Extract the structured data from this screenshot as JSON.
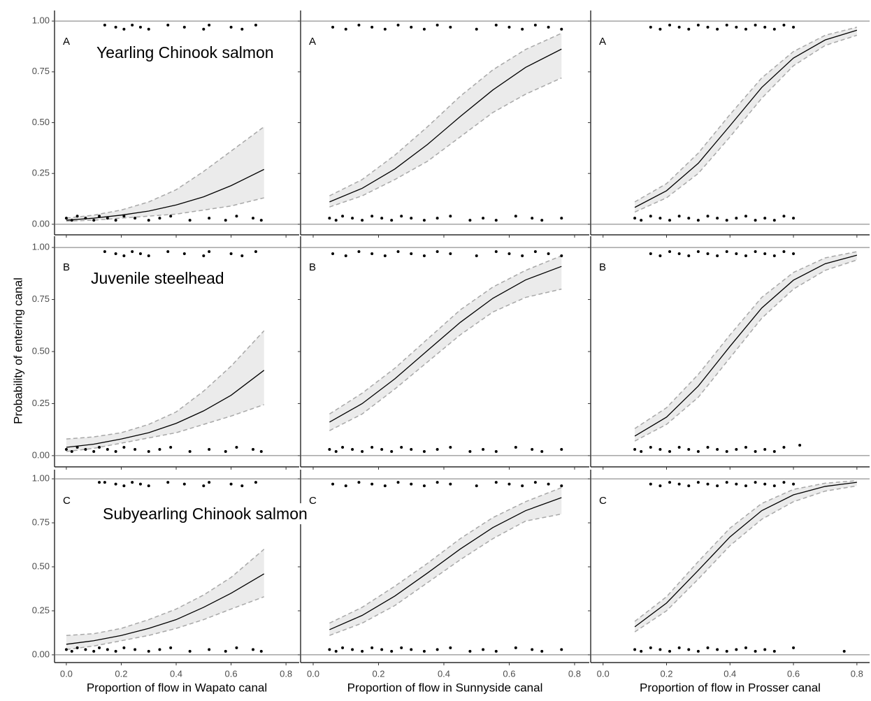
{
  "chart_data": [
    {
      "type": "line",
      "panel_label": "A",
      "annotation": "Yearling Chinook salmon",
      "xlim": [
        -0.043,
        0.848
      ],
      "ylim": [
        -0.052,
        1.052
      ],
      "xticks": [
        0,
        0.2,
        0.4,
        0.6,
        0.8
      ],
      "yticks": [
        {
          "value": 0,
          "label": "0.00"
        },
        {
          "value": 0.25,
          "label": "0.25"
        },
        {
          "value": 0.5,
          "label": "0.50"
        },
        {
          "value": 0.75,
          "label": "0.75"
        },
        {
          "value": 1,
          "label": "1.00"
        }
      ],
      "reference_lines": [
        0,
        1
      ],
      "x": [
        0,
        0.1,
        0.2,
        0.3,
        0.4,
        0.5,
        0.6,
        0.72
      ],
      "fit": [
        0.02,
        0.03,
        0.045,
        0.065,
        0.095,
        0.135,
        0.19,
        0.27
      ],
      "upper": [
        0.03,
        0.045,
        0.07,
        0.11,
        0.17,
        0.26,
        0.36,
        0.48
      ],
      "lower": [
        0.015,
        0.02,
        0.03,
        0.04,
        0.05,
        0.07,
        0.09,
        0.13
      ],
      "points_x": [
        0,
        0.02,
        0.04,
        0.07,
        0.1,
        0.12,
        0.15,
        0.18,
        0.21,
        0.25,
        0.3,
        0.34,
        0.38,
        0.45,
        0.52,
        0.58,
        0.62,
        0.68,
        0.71,
        0.14,
        0.18,
        0.21,
        0.24,
        0.27,
        0.3,
        0.37,
        0.43,
        0.5,
        0.52,
        0.6,
        0.64,
        0.69
      ],
      "points_y": [
        0.03,
        0.02,
        0.04,
        0.03,
        0.02,
        0.04,
        0.03,
        0.02,
        0.04,
        0.03,
        0.02,
        0.03,
        0.04,
        0.02,
        0.03,
        0.02,
        0.04,
        0.03,
        0.02,
        0.98,
        0.97,
        0.96,
        0.98,
        0.97,
        0.96,
        0.98,
        0.97,
        0.96,
        0.98,
        0.97,
        0.96,
        0.98
      ]
    },
    {
      "type": "line",
      "panel_label": "A",
      "xlim": [
        -0.0385,
        0.845
      ],
      "ylim": [
        -0.052,
        1.052
      ],
      "xticks": [
        0,
        0.2,
        0.4,
        0.6,
        0.8
      ],
      "yticks": [
        0,
        0.25,
        0.5,
        0.75,
        1
      ],
      "reference_lines": [
        0,
        1
      ],
      "x": [
        0.05,
        0.15,
        0.25,
        0.35,
        0.45,
        0.55,
        0.65,
        0.76
      ],
      "fit": [
        0.11,
        0.177,
        0.272,
        0.393,
        0.53,
        0.661,
        0.772,
        0.862
      ],
      "upper": [
        0.14,
        0.22,
        0.34,
        0.48,
        0.63,
        0.76,
        0.86,
        0.94
      ],
      "lower": [
        0.085,
        0.14,
        0.22,
        0.31,
        0.43,
        0.55,
        0.64,
        0.72
      ],
      "points_x": [
        0.05,
        0.07,
        0.09,
        0.12,
        0.15,
        0.18,
        0.21,
        0.24,
        0.27,
        0.3,
        0.34,
        0.38,
        0.42,
        0.48,
        0.52,
        0.56,
        0.62,
        0.67,
        0.7,
        0.76,
        0.06,
        0.1,
        0.14,
        0.18,
        0.22,
        0.26,
        0.3,
        0.34,
        0.38,
        0.42,
        0.5,
        0.56,
        0.6,
        0.64,
        0.68,
        0.72,
        0.76
      ],
      "points_y": [
        0.03,
        0.02,
        0.04,
        0.03,
        0.02,
        0.04,
        0.03,
        0.02,
        0.04,
        0.03,
        0.02,
        0.03,
        0.04,
        0.02,
        0.03,
        0.02,
        0.04,
        0.03,
        0.02,
        0.03,
        0.97,
        0.96,
        0.98,
        0.97,
        0.96,
        0.98,
        0.97,
        0.96,
        0.98,
        0.97,
        0.96,
        0.98,
        0.97,
        0.96,
        0.98,
        0.97,
        0.96
      ]
    },
    {
      "type": "line",
      "panel_label": "A",
      "xlim": [
        -0.039,
        0.84
      ],
      "ylim": [
        -0.052,
        1.052
      ],
      "xticks": [
        0,
        0.2,
        0.4,
        0.6,
        0.8
      ],
      "yticks": [
        0,
        0.25,
        0.5,
        0.75,
        1
      ],
      "reference_lines": [
        0,
        1
      ],
      "x": [
        0.1,
        0.2,
        0.3,
        0.4,
        0.5,
        0.6,
        0.7,
        0.8
      ],
      "fit": [
        0.083,
        0.165,
        0.3,
        0.485,
        0.673,
        0.818,
        0.907,
        0.955
      ],
      "upper": [
        0.11,
        0.2,
        0.35,
        0.54,
        0.72,
        0.85,
        0.93,
        0.97
      ],
      "lower": [
        0.06,
        0.13,
        0.25,
        0.43,
        0.62,
        0.78,
        0.88,
        0.93
      ],
      "points_x": [
        0.1,
        0.12,
        0.15,
        0.18,
        0.21,
        0.24,
        0.27,
        0.3,
        0.33,
        0.36,
        0.39,
        0.42,
        0.45,
        0.48,
        0.51,
        0.54,
        0.57,
        0.6,
        0.15,
        0.18,
        0.21,
        0.24,
        0.27,
        0.3,
        0.33,
        0.36,
        0.39,
        0.42,
        0.45,
        0.48,
        0.51,
        0.54,
        0.57,
        0.6
      ],
      "points_y": [
        0.03,
        0.02,
        0.04,
        0.03,
        0.02,
        0.04,
        0.03,
        0.02,
        0.04,
        0.03,
        0.02,
        0.03,
        0.04,
        0.02,
        0.03,
        0.02,
        0.04,
        0.03,
        0.97,
        0.96,
        0.98,
        0.97,
        0.96,
        0.98,
        0.97,
        0.96,
        0.98,
        0.97,
        0.96,
        0.98,
        0.97,
        0.96,
        0.98,
        0.97
      ]
    },
    {
      "type": "line",
      "panel_label": "B",
      "annotation": "Juvenile steelhead",
      "y_label": "Probability of entering canal",
      "xlim": [
        -0.043,
        0.848
      ],
      "ylim": [
        -0.054,
        1.054
      ],
      "xticks": [
        0,
        0.2,
        0.4,
        0.6,
        0.8
      ],
      "yticks": [
        {
          "value": 0,
          "label": "0.00"
        },
        {
          "value": 0.25,
          "label": "0.25"
        },
        {
          "value": 0.5,
          "label": "0.50"
        },
        {
          "value": 0.75,
          "label": "0.75"
        },
        {
          "value": 1,
          "label": "1.00"
        }
      ],
      "reference_lines": [
        0,
        1
      ],
      "x": [
        0,
        0.1,
        0.2,
        0.3,
        0.4,
        0.5,
        0.6,
        0.72
      ],
      "fit": [
        0.04,
        0.055,
        0.08,
        0.11,
        0.155,
        0.215,
        0.29,
        0.41
      ],
      "upper": [
        0.08,
        0.09,
        0.11,
        0.15,
        0.21,
        0.31,
        0.43,
        0.6
      ],
      "lower": [
        0.02,
        0.035,
        0.06,
        0.085,
        0.11,
        0.15,
        0.19,
        0.245
      ],
      "points_x": [
        0,
        0.02,
        0.04,
        0.07,
        0.1,
        0.12,
        0.15,
        0.18,
        0.21,
        0.25,
        0.3,
        0.34,
        0.38,
        0.45,
        0.52,
        0.58,
        0.62,
        0.68,
        0.71,
        0.14,
        0.18,
        0.21,
        0.24,
        0.27,
        0.3,
        0.37,
        0.43,
        0.5,
        0.52,
        0.6,
        0.64,
        0.69
      ],
      "points_y": [
        0.03,
        0.02,
        0.04,
        0.03,
        0.02,
        0.04,
        0.03,
        0.02,
        0.04,
        0.03,
        0.02,
        0.03,
        0.04,
        0.02,
        0.03,
        0.02,
        0.04,
        0.03,
        0.02,
        0.98,
        0.97,
        0.96,
        0.98,
        0.97,
        0.96,
        0.98,
        0.97,
        0.96,
        0.98,
        0.97,
        0.96,
        0.98
      ]
    },
    {
      "type": "line",
      "panel_label": "B",
      "xlim": [
        -0.0385,
        0.845
      ],
      "ylim": [
        -0.054,
        1.054
      ],
      "xticks": [
        0,
        0.2,
        0.4,
        0.6,
        0.8
      ],
      "yticks": [
        0,
        0.25,
        0.5,
        0.75,
        1
      ],
      "reference_lines": [
        0,
        1
      ],
      "x": [
        0.05,
        0.15,
        0.25,
        0.35,
        0.45,
        0.55,
        0.65,
        0.76
      ],
      "fit": [
        0.161,
        0.25,
        0.369,
        0.505,
        0.64,
        0.756,
        0.844,
        0.909
      ],
      "upper": [
        0.2,
        0.3,
        0.42,
        0.56,
        0.7,
        0.81,
        0.89,
        0.96
      ],
      "lower": [
        0.12,
        0.2,
        0.32,
        0.45,
        0.58,
        0.69,
        0.76,
        0.8
      ],
      "points_x": [
        0.05,
        0.07,
        0.09,
        0.12,
        0.15,
        0.18,
        0.21,
        0.24,
        0.27,
        0.3,
        0.34,
        0.38,
        0.42,
        0.48,
        0.52,
        0.56,
        0.62,
        0.67,
        0.7,
        0.76,
        0.06,
        0.1,
        0.14,
        0.18,
        0.22,
        0.26,
        0.3,
        0.34,
        0.38,
        0.42,
        0.5,
        0.56,
        0.6,
        0.64,
        0.68,
        0.72,
        0.76
      ],
      "points_y": [
        0.03,
        0.02,
        0.04,
        0.03,
        0.02,
        0.04,
        0.03,
        0.02,
        0.04,
        0.03,
        0.02,
        0.03,
        0.04,
        0.02,
        0.03,
        0.02,
        0.04,
        0.03,
        0.02,
        0.03,
        0.97,
        0.96,
        0.98,
        0.97,
        0.96,
        0.98,
        0.97,
        0.96,
        0.98,
        0.97,
        0.96,
        0.98,
        0.97,
        0.96,
        0.98,
        0.97,
        0.96
      ]
    },
    {
      "type": "line",
      "panel_label": "B",
      "xlim": [
        -0.039,
        0.84
      ],
      "ylim": [
        -0.054,
        1.054
      ],
      "xticks": [
        0,
        0.2,
        0.4,
        0.6,
        0.8
      ],
      "yticks": [
        0,
        0.25,
        0.5,
        0.75,
        1
      ],
      "reference_lines": [
        0,
        1
      ],
      "x": [
        0.1,
        0.2,
        0.3,
        0.4,
        0.5,
        0.6,
        0.7,
        0.8
      ],
      "fit": [
        0.094,
        0.185,
        0.334,
        0.525,
        0.709,
        0.843,
        0.922,
        0.963
      ],
      "upper": [
        0.13,
        0.23,
        0.39,
        0.58,
        0.76,
        0.88,
        0.95,
        0.98
      ],
      "lower": [
        0.07,
        0.15,
        0.28,
        0.47,
        0.66,
        0.8,
        0.89,
        0.94
      ],
      "points_x": [
        0.1,
        0.12,
        0.15,
        0.18,
        0.21,
        0.24,
        0.27,
        0.3,
        0.33,
        0.36,
        0.39,
        0.42,
        0.45,
        0.48,
        0.51,
        0.54,
        0.57,
        0.62,
        0.15,
        0.18,
        0.21,
        0.24,
        0.27,
        0.3,
        0.33,
        0.36,
        0.39,
        0.42,
        0.45,
        0.48,
        0.51,
        0.54,
        0.57,
        0.6
      ],
      "points_y": [
        0.03,
        0.02,
        0.04,
        0.03,
        0.02,
        0.04,
        0.03,
        0.02,
        0.04,
        0.03,
        0.02,
        0.03,
        0.04,
        0.02,
        0.03,
        0.02,
        0.04,
        0.05,
        0.97,
        0.96,
        0.98,
        0.97,
        0.96,
        0.98,
        0.97,
        0.96,
        0.98,
        0.97,
        0.96,
        0.98,
        0.97,
        0.96,
        0.98,
        0.97
      ]
    },
    {
      "type": "line",
      "panel_label": "C",
      "annotation": "Subyearling Chinook salmon",
      "x_label": "Proportion of flow in Wapato canal",
      "xlim": [
        -0.043,
        0.848
      ],
      "ylim": [
        -0.044,
        1.052
      ],
      "xticks": [
        {
          "value": 0,
          "label": "0.0"
        },
        {
          "value": 0.2,
          "label": "0.2"
        },
        {
          "value": 0.4,
          "label": "0.4"
        },
        {
          "value": 0.6,
          "label": "0.6"
        },
        {
          "value": 0.8,
          "label": "0.8"
        }
      ],
      "yticks": [
        {
          "value": 0,
          "label": "0.00"
        },
        {
          "value": 0.25,
          "label": "0.25"
        },
        {
          "value": 0.5,
          "label": "0.50"
        },
        {
          "value": 0.75,
          "label": "0.75"
        },
        {
          "value": 1,
          "label": "1.00"
        }
      ],
      "reference_lines": [
        0,
        1
      ],
      "x": [
        0,
        0.1,
        0.2,
        0.3,
        0.4,
        0.5,
        0.6,
        0.72
      ],
      "fit": [
        0.06,
        0.08,
        0.11,
        0.15,
        0.2,
        0.27,
        0.35,
        0.46
      ],
      "upper": [
        0.11,
        0.12,
        0.15,
        0.2,
        0.26,
        0.34,
        0.44,
        0.6
      ],
      "lower": [
        0.03,
        0.05,
        0.08,
        0.11,
        0.15,
        0.2,
        0.26,
        0.33
      ],
      "points_x": [
        0,
        0.02,
        0.04,
        0.07,
        0.1,
        0.12,
        0.15,
        0.18,
        0.21,
        0.25,
        0.3,
        0.34,
        0.38,
        0.45,
        0.52,
        0.58,
        0.62,
        0.68,
        0.71,
        0.12,
        0.14,
        0.18,
        0.21,
        0.24,
        0.27,
        0.3,
        0.37,
        0.43,
        0.5,
        0.52,
        0.6,
        0.64,
        0.69
      ],
      "points_y": [
        0.03,
        0.02,
        0.04,
        0.03,
        0.02,
        0.04,
        0.03,
        0.02,
        0.04,
        0.03,
        0.02,
        0.03,
        0.04,
        0.02,
        0.03,
        0.02,
        0.04,
        0.03,
        0.02,
        0.98,
        0.98,
        0.97,
        0.96,
        0.98,
        0.97,
        0.96,
        0.98,
        0.97,
        0.96,
        0.98,
        0.97,
        0.96,
        0.98
      ]
    },
    {
      "type": "line",
      "panel_label": "C",
      "x_label": "Proportion of flow in Sunnyside canal",
      "xlim": [
        -0.0385,
        0.845
      ],
      "ylim": [
        -0.044,
        1.052
      ],
      "xticks": [
        {
          "value": 0,
          "label": "0.0"
        },
        {
          "value": 0.2,
          "label": "0.2"
        },
        {
          "value": 0.4,
          "label": "0.4"
        },
        {
          "value": 0.6,
          "label": "0.6"
        },
        {
          "value": 0.8,
          "label": "0.8"
        }
      ],
      "yticks": [
        0,
        0.25,
        0.5,
        0.75,
        1
      ],
      "reference_lines": [
        0,
        1
      ],
      "x": [
        0.05,
        0.15,
        0.25,
        0.35,
        0.45,
        0.55,
        0.65,
        0.76
      ],
      "fit": [
        0.143,
        0.224,
        0.334,
        0.465,
        0.601,
        0.723,
        0.819,
        0.893
      ],
      "upper": [
        0.18,
        0.27,
        0.39,
        0.52,
        0.66,
        0.78,
        0.87,
        0.95
      ],
      "lower": [
        0.11,
        0.18,
        0.28,
        0.41,
        0.54,
        0.66,
        0.76,
        0.8
      ],
      "points_x": [
        0.05,
        0.07,
        0.09,
        0.12,
        0.15,
        0.18,
        0.21,
        0.24,
        0.27,
        0.3,
        0.34,
        0.38,
        0.42,
        0.48,
        0.52,
        0.56,
        0.62,
        0.67,
        0.7,
        0.76,
        0.06,
        0.1,
        0.14,
        0.18,
        0.22,
        0.26,
        0.3,
        0.34,
        0.38,
        0.42,
        0.5,
        0.56,
        0.6,
        0.64,
        0.68,
        0.72,
        0.76
      ],
      "points_y": [
        0.03,
        0.02,
        0.04,
        0.03,
        0.02,
        0.04,
        0.03,
        0.02,
        0.04,
        0.03,
        0.02,
        0.03,
        0.04,
        0.02,
        0.03,
        0.02,
        0.04,
        0.03,
        0.02,
        0.03,
        0.97,
        0.96,
        0.98,
        0.97,
        0.96,
        0.98,
        0.97,
        0.96,
        0.98,
        0.97,
        0.96,
        0.98,
        0.97,
        0.96,
        0.98,
        0.97,
        0.96
      ]
    },
    {
      "type": "line",
      "panel_label": "C",
      "x_label": "Proportion of flow in Prosser canal",
      "xlim": [
        -0.039,
        0.84
      ],
      "ylim": [
        -0.044,
        1.052
      ],
      "xticks": [
        {
          "value": 0,
          "label": "0.0"
        },
        {
          "value": 0.2,
          "label": "0.2"
        },
        {
          "value": 0.4,
          "label": "0.4"
        },
        {
          "value": 0.6,
          "label": "0.6"
        },
        {
          "value": 0.8,
          "label": "0.8"
        }
      ],
      "yticks": [
        0,
        0.25,
        0.5,
        0.75,
        1
      ],
      "reference_lines": [
        0,
        1
      ],
      "x": [
        0.1,
        0.2,
        0.3,
        0.4,
        0.5,
        0.6,
        0.7,
        0.8
      ],
      "fit": [
        0.159,
        0.294,
        0.48,
        0.67,
        0.819,
        0.909,
        0.957,
        0.98
      ],
      "upper": [
        0.19,
        0.33,
        0.53,
        0.72,
        0.86,
        0.94,
        0.975,
        0.99
      ],
      "lower": [
        0.13,
        0.25,
        0.43,
        0.62,
        0.77,
        0.87,
        0.93,
        0.96
      ],
      "points_x": [
        0.1,
        0.12,
        0.15,
        0.18,
        0.21,
        0.24,
        0.27,
        0.3,
        0.33,
        0.36,
        0.39,
        0.42,
        0.45,
        0.48,
        0.51,
        0.54,
        0.6,
        0.76,
        0.15,
        0.18,
        0.21,
        0.24,
        0.27,
        0.3,
        0.33,
        0.36,
        0.39,
        0.42,
        0.45,
        0.48,
        0.51,
        0.54,
        0.57,
        0.6
      ],
      "points_y": [
        0.03,
        0.02,
        0.04,
        0.03,
        0.02,
        0.04,
        0.03,
        0.02,
        0.04,
        0.03,
        0.02,
        0.03,
        0.04,
        0.02,
        0.03,
        0.02,
        0.04,
        0.02,
        0.97,
        0.96,
        0.98,
        0.97,
        0.96,
        0.98,
        0.97,
        0.96,
        0.98,
        0.97,
        0.96,
        0.98,
        0.97,
        0.96,
        0.98,
        0.97
      ]
    }
  ]
}
